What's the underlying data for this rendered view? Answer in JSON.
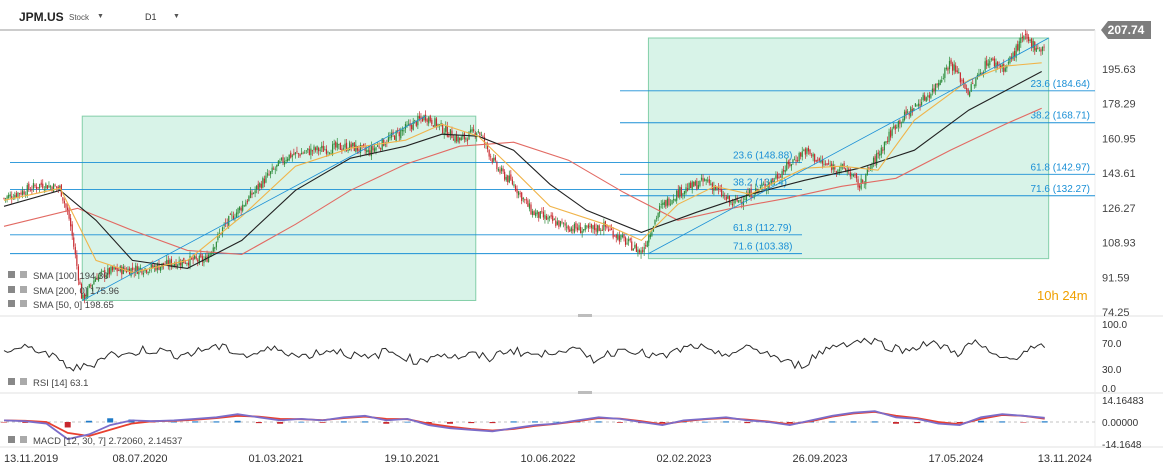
{
  "header": {
    "symbol": "JPM.US",
    "instrument_type": "Stock",
    "interval": "D1"
  },
  "last_price": "207.74",
  "timer": {
    "hours": "10",
    "h_unit": "h",
    "minutes": "24",
    "m_unit": "m"
  },
  "legend": {
    "sma_100": "SMA [100] 194.30",
    "sma_200": "SMA [200, 0] 175.96",
    "sma_50": "SMA [50, 0] 198.65",
    "rsi": "RSI [14] 63.1",
    "macd": "MACD [12, 30, 7] 2.72060, 2.14537"
  },
  "colors": {
    "fib_line": "#1a8fd6",
    "box_fill": "#d8f3e8",
    "box_stroke": "#84cfa9",
    "candle_up": "#2e8b3a",
    "candle_down": "#c8282e",
    "sma_100": "#222222",
    "sma_200": "#e26a63",
    "sma_50": "#f0b44a",
    "macd_line": "#7b6cc9",
    "macd_signal": "#e8402f",
    "macd_hist_up": "#1e7ac7"
  },
  "chart_data": [
    {
      "type": "candlestick",
      "title": "JPM.US D1",
      "x_ticks": [
        "13.11.2019",
        "08.07.2020",
        "01.03.2021",
        "19.10.2021",
        "10.06.2022",
        "02.02.2023",
        "26.09.2023",
        "17.05.2024",
        "13.11.2024"
      ],
      "y_ticks": [
        195.63,
        178.29,
        160.95,
        143.61,
        126.27,
        108.93,
        91.59,
        74.25
      ],
      "ylim": [
        74.25,
        215
      ],
      "last_price": 207.74,
      "price_path": [
        [
          "13.11.2019",
          131
        ],
        [
          "2020-01",
          138
        ],
        [
          "2020-02",
          136
        ],
        [
          "2020-03-02",
          120
        ],
        [
          "2020-03-23",
          80
        ],
        [
          "2020-04",
          92
        ],
        [
          "2020-05",
          95
        ],
        [
          "08.07.2020",
          96
        ],
        [
          "2020-09",
          100
        ],
        [
          "2020-10",
          100
        ],
        [
          "2020-11",
          117
        ],
        [
          "2020-12",
          127
        ],
        [
          "2021-01",
          138
        ],
        [
          "01.03.2021",
          152
        ],
        [
          "2021-04",
          155
        ],
        [
          "2021-06",
          157
        ],
        [
          "2021-07",
          154
        ],
        [
          "2021-08",
          160
        ],
        [
          "19.10.2021",
          172
        ],
        [
          "2021-11",
          166
        ],
        [
          "2021-12",
          160
        ],
        [
          "2022-01",
          165
        ],
        [
          "2022-02",
          146
        ],
        [
          "2022-03",
          138
        ],
        [
          "2022-04",
          124
        ],
        [
          "2022-05",
          120
        ],
        [
          "10.06.2022",
          117
        ],
        [
          "2022-07",
          115
        ],
        [
          "2022-08",
          117
        ],
        [
          "2022-09",
          110
        ],
        [
          "2022-10",
          104
        ],
        [
          "2022-11",
          126
        ],
        [
          "2022-12",
          134
        ],
        [
          "02.02.2023",
          140
        ],
        [
          "2023-03",
          128
        ],
        [
          "2023-05",
          138
        ],
        [
          "2023-07",
          155
        ],
        [
          "2023-08",
          148
        ],
        [
          "26.09.2023",
          145
        ],
        [
          "2023-10",
          137
        ],
        [
          "2023-12",
          168
        ],
        [
          "2024-02",
          185
        ],
        [
          "2024-03",
          199
        ],
        [
          "2024-04",
          184
        ],
        [
          "17.05.2024",
          200
        ],
        [
          "2024-06",
          196
        ],
        [
          "2024-07",
          211
        ],
        [
          "2024-08",
          205
        ],
        [
          "2024-08-20",
          207.74
        ]
      ],
      "sma_100_path": [
        [
          "13.11.2019",
          127
        ],
        [
          "2020-02",
          135
        ],
        [
          "2020-04",
          120
        ],
        [
          "2020-06",
          100
        ],
        [
          "2020-09",
          96
        ],
        [
          "2020-12",
          110
        ],
        [
          "2021-03",
          135
        ],
        [
          "2021-06",
          151
        ],
        [
          "2021-09",
          157
        ],
        [
          "2021-11",
          163
        ],
        [
          "2022-01",
          162
        ],
        [
          "2022-03",
          155
        ],
        [
          "2022-05",
          138
        ],
        [
          "2022-07",
          125
        ],
        [
          "2022-10",
          114
        ],
        [
          "2023-01",
          124
        ],
        [
          "2023-04",
          133
        ],
        [
          "2023-07",
          140
        ],
        [
          "2023-10",
          146
        ],
        [
          "2024-01",
          155
        ],
        [
          "2024-04",
          175
        ],
        [
          "2024-08",
          194.3
        ]
      ],
      "sma_200_path": [
        [
          "13.11.2019",
          117
        ],
        [
          "2020-03",
          126
        ],
        [
          "2020-06",
          115
        ],
        [
          "2020-09",
          105
        ],
        [
          "2020-12",
          103
        ],
        [
          "2021-03",
          118
        ],
        [
          "2021-06",
          135
        ],
        [
          "2021-09",
          148
        ],
        [
          "2021-12",
          157
        ],
        [
          "2022-03",
          159
        ],
        [
          "2022-06",
          150
        ],
        [
          "2022-09",
          134
        ],
        [
          "2022-12",
          120
        ],
        [
          "2023-03",
          126
        ],
        [
          "2023-06",
          131
        ],
        [
          "2023-09",
          137
        ],
        [
          "2023-12",
          141
        ],
        [
          "2024-03",
          155
        ],
        [
          "2024-06",
          168
        ],
        [
          "2024-08",
          175.96
        ]
      ],
      "sma_50_path": [
        [
          "13.11.2019",
          130
        ],
        [
          "2020-02",
          136
        ],
        [
          "2020-04",
          100
        ],
        [
          "2020-06",
          94
        ],
        [
          "2020-09",
          100
        ],
        [
          "2020-12",
          122
        ],
        [
          "2021-03",
          147
        ],
        [
          "2021-06",
          156
        ],
        [
          "2021-09",
          160
        ],
        [
          "2021-11",
          168
        ],
        [
          "2022-01",
          162
        ],
        [
          "2022-03",
          145
        ],
        [
          "2022-05",
          127
        ],
        [
          "2022-08",
          118
        ],
        [
          "2022-10",
          110
        ],
        [
          "2022-12",
          128
        ],
        [
          "2023-02",
          137
        ],
        [
          "2023-04",
          133
        ],
        [
          "2023-07",
          146
        ],
        [
          "2023-09",
          147
        ],
        [
          "2023-11",
          145
        ],
        [
          "2024-01",
          170
        ],
        [
          "2024-04",
          190
        ],
        [
          "2024-06",
          197
        ],
        [
          "2024-08",
          198.65
        ]
      ],
      "fibonacci": [
        {
          "level": "23.6",
          "value": 184.64
        },
        {
          "level": "38.2",
          "value": 168.71
        },
        {
          "level": "61.8",
          "value": 142.97
        },
        {
          "level": "71.6",
          "value": 132.27
        },
        {
          "level": "23.6",
          "value": 148.88
        },
        {
          "level": "38.2",
          "value": 135.4
        },
        {
          "level": "61.8",
          "value": 112.79
        },
        {
          "level": "71.6",
          "value": 103.38
        }
      ]
    },
    {
      "type": "line",
      "title": "RSI [14] 63.1",
      "y_ticks": [
        100.0,
        70.0,
        30.0,
        0.0
      ],
      "ylim": [
        0,
        100
      ],
      "values": [
        58,
        62,
        60,
        45,
        30,
        35,
        55,
        50,
        60,
        58,
        52,
        55,
        65,
        60,
        50,
        58,
        62,
        48,
        55,
        60,
        52,
        45,
        58,
        50,
        40,
        55,
        48,
        52,
        46,
        60,
        55,
        50,
        62,
        58,
        45,
        55,
        63,
        52,
        48,
        60,
        66,
        50,
        56,
        62,
        55,
        40,
        35,
        55,
        68,
        72,
        75,
        65,
        58,
        70,
        66,
        55,
        72,
        50,
        45,
        60,
        63.1
      ]
    },
    {
      "type": "line",
      "title": "MACD [12, 30, 7] 2.72060, 2.14537",
      "y_ticks": [
        14.16483,
        0.0,
        -14.1648
      ],
      "ylim": [
        -14.1648,
        14.16483
      ],
      "series": [
        {
          "name": "MACD",
          "values": [
            1,
            0.5,
            -1,
            -11,
            -8,
            -2,
            1,
            0.5,
            1,
            2,
            3,
            5,
            3,
            1,
            2,
            1,
            3,
            4,
            1,
            2,
            -2,
            -4,
            -5,
            -6,
            -4,
            -2,
            -1,
            1,
            3,
            2,
            0,
            -2,
            1,
            2,
            3,
            1,
            0,
            -2,
            1,
            4,
            6,
            7,
            3,
            2,
            -1,
            -2,
            3,
            5,
            4,
            2.7206
          ]
        },
        {
          "name": "Signal",
          "values": [
            1,
            0.8,
            0,
            -7,
            -9,
            -5,
            -1,
            0.5,
            0.8,
            1.5,
            2.5,
            4,
            3.5,
            2,
            1.8,
            1.2,
            2.5,
            3.5,
            2,
            1.8,
            -1,
            -3,
            -4.5,
            -5.5,
            -4.5,
            -2.5,
            -1.2,
            0.5,
            2.5,
            2.2,
            0.5,
            -1.5,
            0.5,
            1.8,
            2.5,
            1.5,
            0.3,
            -1.5,
            0.5,
            3.5,
            5.5,
            6.5,
            4,
            2.5,
            0,
            -1.5,
            2,
            4.5,
            4,
            2.14537
          ]
        }
      ]
    }
  ]
}
